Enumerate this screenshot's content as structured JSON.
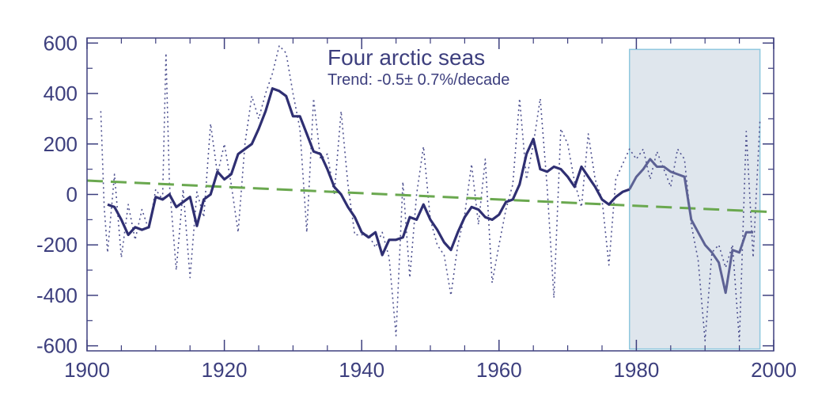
{
  "chart_data": {
    "type": "line",
    "title": "Four arctic seas",
    "subtitle": "Trend: -0.5± 0.7%/decade",
    "xlabel": "",
    "ylabel": "",
    "xlim": [
      1900,
      2000
    ],
    "ylim": [
      -620,
      620
    ],
    "x_ticks": [
      1900,
      1920,
      1940,
      1960,
      1980,
      2000
    ],
    "y_ticks": [
      600,
      400,
      200,
      0,
      -200,
      -400,
      -600
    ],
    "grid": false,
    "legend": "none",
    "shaded_region": {
      "x_start": 1979,
      "x_end": 1998,
      "color": "#dfe6ed",
      "border": "#8fc8df"
    },
    "colors": {
      "axis": "#3d3f7e",
      "smoothed": "#2f2f72",
      "annual": "#4f5290",
      "trend": "#6aa84f"
    },
    "series": [
      {
        "style": "solid",
        "points": [
          [
            1903,
            -40
          ],
          [
            1904,
            -50
          ],
          [
            1905,
            -100
          ],
          [
            1906,
            -160
          ],
          [
            1907,
            -130
          ],
          [
            1908,
            -140
          ],
          [
            1909,
            -130
          ],
          [
            1910,
            -10
          ],
          [
            1911,
            -20
          ],
          [
            1912,
            0
          ],
          [
            1913,
            -50
          ],
          [
            1914,
            -30
          ],
          [
            1915,
            -10
          ],
          [
            1916,
            -125
          ],
          [
            1917,
            -20
          ],
          [
            1918,
            0
          ],
          [
            1919,
            90
          ],
          [
            1920,
            60
          ],
          [
            1921,
            80
          ],
          [
            1922,
            160
          ],
          [
            1923,
            180
          ],
          [
            1924,
            200
          ],
          [
            1925,
            260
          ],
          [
            1926,
            330
          ],
          [
            1927,
            420
          ],
          [
            1928,
            410
          ],
          [
            1929,
            390
          ],
          [
            1930,
            310
          ],
          [
            1931,
            310
          ],
          [
            1932,
            240
          ],
          [
            1933,
            170
          ],
          [
            1934,
            160
          ],
          [
            1935,
            100
          ],
          [
            1936,
            30
          ],
          [
            1937,
            0
          ],
          [
            1938,
            -50
          ],
          [
            1939,
            -90
          ],
          [
            1940,
            -150
          ],
          [
            1941,
            -170
          ],
          [
            1942,
            -150
          ],
          [
            1943,
            -240
          ],
          [
            1944,
            -180
          ],
          [
            1945,
            -180
          ],
          [
            1946,
            -170
          ],
          [
            1947,
            -90
          ],
          [
            1948,
            -100
          ],
          [
            1949,
            -40
          ],
          [
            1950,
            -100
          ],
          [
            1951,
            -140
          ],
          [
            1952,
            -190
          ],
          [
            1953,
            -220
          ],
          [
            1954,
            -150
          ],
          [
            1955,
            -90
          ],
          [
            1956,
            -50
          ],
          [
            1957,
            -60
          ],
          [
            1958,
            -90
          ],
          [
            1959,
            -100
          ],
          [
            1960,
            -80
          ],
          [
            1961,
            -30
          ],
          [
            1962,
            -20
          ],
          [
            1963,
            40
          ],
          [
            1964,
            160
          ],
          [
            1965,
            220
          ],
          [
            1966,
            100
          ],
          [
            1967,
            90
          ],
          [
            1968,
            110
          ],
          [
            1969,
            100
          ],
          [
            1970,
            70
          ],
          [
            1971,
            30
          ],
          [
            1972,
            110
          ],
          [
            1973,
            70
          ],
          [
            1974,
            30
          ],
          [
            1975,
            -20
          ],
          [
            1976,
            -40
          ],
          [
            1977,
            -10
          ],
          [
            1978,
            10
          ],
          [
            1979,
            20
          ]
        ]
      },
      {
        "style": "solid-muted",
        "points": [
          [
            1979,
            20
          ],
          [
            1980,
            70
          ],
          [
            1981,
            100
          ],
          [
            1982,
            140
          ],
          [
            1983,
            110
          ],
          [
            1984,
            110
          ],
          [
            1985,
            90
          ],
          [
            1986,
            80
          ],
          [
            1987,
            70
          ],
          [
            1988,
            -100
          ],
          [
            1989,
            -150
          ],
          [
            1990,
            -200
          ],
          [
            1991,
            -230
          ],
          [
            1992,
            -270
          ],
          [
            1993,
            -390
          ],
          [
            1994,
            -220
          ],
          [
            1995,
            -230
          ],
          [
            1996,
            -150
          ],
          [
            1997,
            -150
          ]
        ]
      },
      {
        "style": "dotted",
        "points": [
          [
            1902,
            330
          ],
          [
            1902.5,
            -50
          ],
          [
            1903,
            -230
          ],
          [
            1904,
            80
          ],
          [
            1905,
            -250
          ],
          [
            1906,
            -40
          ],
          [
            1907,
            -180
          ],
          [
            1908,
            -60
          ],
          [
            1909,
            -140
          ],
          [
            1910,
            20
          ],
          [
            1911,
            -20
          ],
          [
            1911.5,
            560
          ],
          [
            1912,
            40
          ],
          [
            1913,
            -300
          ],
          [
            1914,
            20
          ],
          [
            1915,
            -330
          ],
          [
            1916,
            10
          ],
          [
            1917,
            -90
          ],
          [
            1918,
            280
          ],
          [
            1919,
            80
          ],
          [
            1920,
            200
          ],
          [
            1921,
            40
          ],
          [
            1922,
            -150
          ],
          [
            1923,
            200
          ],
          [
            1924,
            390
          ],
          [
            1925,
            300
          ],
          [
            1926,
            400
          ],
          [
            1927,
            480
          ],
          [
            1928,
            590
          ],
          [
            1929,
            560
          ],
          [
            1930,
            400
          ],
          [
            1931,
            260
          ],
          [
            1932,
            -150
          ],
          [
            1933,
            380
          ],
          [
            1934,
            140
          ],
          [
            1935,
            160
          ],
          [
            1936,
            0
          ],
          [
            1937,
            330
          ],
          [
            1938,
            40
          ],
          [
            1939,
            -160
          ],
          [
            1940,
            -160
          ],
          [
            1941,
            -160
          ],
          [
            1942,
            -210
          ],
          [
            1943,
            -150
          ],
          [
            1944,
            -250
          ],
          [
            1945,
            -560
          ],
          [
            1946,
            50
          ],
          [
            1947,
            -330
          ],
          [
            1948,
            0
          ],
          [
            1949,
            190
          ],
          [
            1950,
            -100
          ],
          [
            1951,
            -200
          ],
          [
            1952,
            -240
          ],
          [
            1953,
            -400
          ],
          [
            1954,
            -200
          ],
          [
            1955,
            -80
          ],
          [
            1956,
            120
          ],
          [
            1957,
            -120
          ],
          [
            1958,
            140
          ],
          [
            1959,
            -350
          ],
          [
            1960,
            -200
          ],
          [
            1961,
            -60
          ],
          [
            1962,
            40
          ],
          [
            1963,
            380
          ],
          [
            1964,
            60
          ],
          [
            1965,
            200
          ],
          [
            1966,
            380
          ],
          [
            1967,
            30
          ],
          [
            1968,
            -410
          ],
          [
            1969,
            260
          ],
          [
            1970,
            200
          ],
          [
            1971,
            50
          ],
          [
            1972,
            -50
          ],
          [
            1973,
            240
          ],
          [
            1974,
            60
          ],
          [
            1975,
            -20
          ],
          [
            1976,
            -280
          ],
          [
            1977,
            60
          ],
          [
            1978,
            120
          ],
          [
            1979,
            180
          ],
          [
            1980,
            140
          ],
          [
            1981,
            180
          ],
          [
            1982,
            60
          ],
          [
            1983,
            170
          ],
          [
            1984,
            100
          ],
          [
            1985,
            30
          ],
          [
            1986,
            180
          ],
          [
            1987,
            140
          ],
          [
            1988,
            -120
          ],
          [
            1989,
            -260
          ],
          [
            1990,
            -580
          ],
          [
            1991,
            -230
          ],
          [
            1992,
            -200
          ],
          [
            1993,
            -290
          ],
          [
            1994,
            -200
          ],
          [
            1995,
            -580
          ],
          [
            1996,
            250
          ],
          [
            1997,
            -250
          ],
          [
            1998,
            290
          ]
        ]
      },
      {
        "style": "dashed",
        "points": [
          [
            1900,
            55
          ],
          [
            2000,
            -70
          ]
        ]
      }
    ]
  }
}
